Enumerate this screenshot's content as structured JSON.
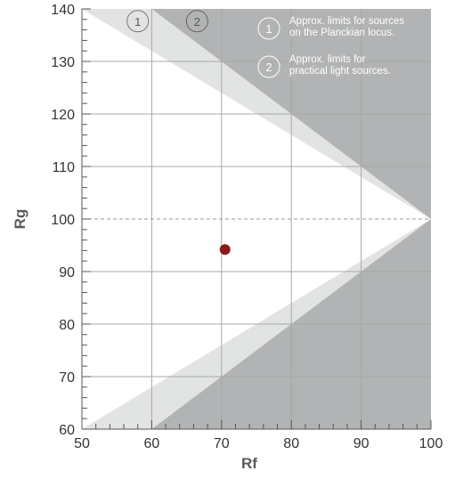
{
  "chart_data": {
    "type": "scatter",
    "xlabel": "Rf",
    "ylabel": "Rg",
    "xlim": [
      50,
      100
    ],
    "ylim": [
      60,
      140
    ],
    "xticks": [
      50,
      60,
      70,
      80,
      90,
      100
    ],
    "yticks": [
      60,
      70,
      80,
      90,
      100,
      110,
      120,
      130,
      140
    ],
    "xtick_labels": [
      "50",
      "60",
      "70",
      "80",
      "90",
      "100"
    ],
    "ytick_labels": [
      "60",
      "70",
      "80",
      "90",
      "100",
      "110",
      "120",
      "130",
      "140"
    ],
    "grid": true,
    "reference_line": {
      "y": 100,
      "style": "dashed"
    },
    "regions": [
      {
        "marker": "1",
        "color": "#e2e3e3",
        "upper_vertices": [
          [
            50,
            140
          ],
          [
            100,
            100
          ]
        ],
        "lower_vertices": [
          [
            50,
            60
          ],
          [
            100,
            100
          ]
        ]
      },
      {
        "marker": "2",
        "color": "#b1b3b4",
        "upper_vertices": [
          [
            60,
            140
          ],
          [
            100,
            100
          ]
        ],
        "lower_vertices": [
          [
            60,
            60
          ],
          [
            100,
            100
          ]
        ]
      }
    ],
    "points": [
      {
        "x": 70.5,
        "y": 94.2,
        "color": "#8b1a1a"
      }
    ],
    "legend": {
      "placement": "top-right",
      "entries": [
        {
          "marker": "1",
          "text_lines": [
            "Approx. limits for sources",
            "on the Planckian locus."
          ]
        },
        {
          "marker": "2",
          "text_lines": [
            "Approx. limits for",
            "practical light sources."
          ]
        }
      ]
    },
    "region_markers": [
      {
        "label": "1",
        "x": 58,
        "y": 138
      },
      {
        "label": "2",
        "x": 66.5,
        "y": 138
      }
    ]
  }
}
